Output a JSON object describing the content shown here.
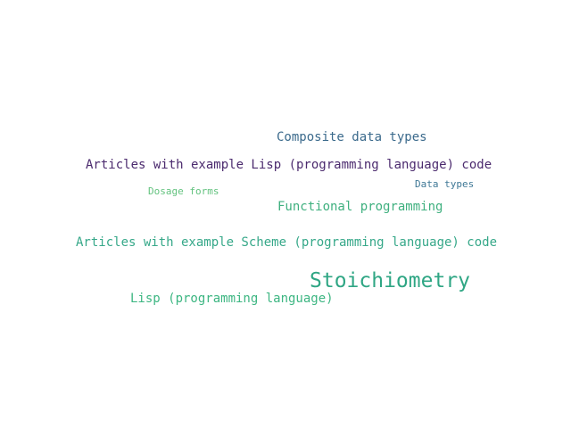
{
  "words": [
    {
      "text": "Composite data types",
      "color": "#3b6a8c"
    },
    {
      "text": "Articles with example Lisp (programming language) code",
      "color": "#4b2a6e"
    },
    {
      "text": "Data types",
      "color": "#3f7896"
    },
    {
      "text": "Dosage forms",
      "color": "#62c27e"
    },
    {
      "text": "Functional programming",
      "color": "#3fb07f"
    },
    {
      "text": "Articles with example Scheme (programming language) code",
      "color": "#36a889"
    },
    {
      "text": "Stoichiometry",
      "color": "#2fa684"
    },
    {
      "text": "Lisp (programming language)",
      "color": "#3db682"
    }
  ]
}
